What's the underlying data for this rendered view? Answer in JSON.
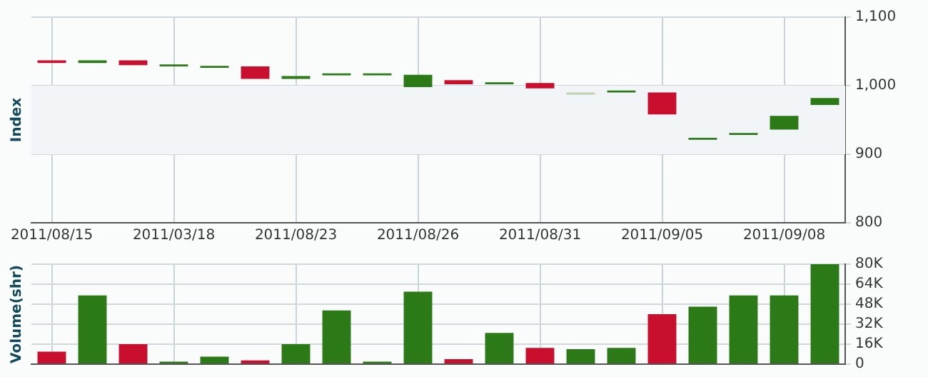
{
  "chart_data": [
    {
      "type": "candlestick",
      "ylabel": "Index",
      "categories": [
        "2011/08/15",
        null,
        null,
        "2011/03/18",
        null,
        null,
        "2011/08/23",
        null,
        null,
        "2011/08/26",
        null,
        null,
        "2011/08/31",
        null,
        null,
        "2011/09/05",
        null,
        null,
        "2011/09/08",
        null
      ],
      "ohlc": [
        [
          1037,
          1037,
          1033,
          1033
        ],
        [
          1033,
          1037,
          1033,
          1037
        ],
        [
          1037,
          1037,
          1030,
          1030
        ],
        [
          1028,
          1031,
          1028,
          1031
        ],
        [
          1026,
          1029,
          1026,
          1029
        ],
        [
          1028,
          1028,
          1010,
          1010
        ],
        [
          1010,
          1014,
          1010,
          1014
        ],
        [
          1015,
          1018,
          1015,
          1018
        ],
        [
          1015,
          1018,
          1015,
          1018
        ],
        [
          998,
          1016,
          998,
          1016
        ],
        [
          1008,
          1008,
          1002,
          1002
        ],
        [
          1002,
          1005,
          1002,
          1005
        ],
        [
          1004,
          1004,
          996,
          996
        ],
        [
          987,
          990,
          987,
          990
        ],
        [
          990,
          993,
          990,
          993
        ],
        [
          990,
          990,
          958,
          958
        ],
        [
          921,
          924,
          921,
          924
        ],
        [
          928,
          931,
          928,
          931
        ],
        [
          936,
          956,
          936,
          956
        ],
        [
          972,
          982,
          972,
          982
        ]
      ],
      "colors": [
        "#c8102e",
        "#2b7a17",
        "#c8102e",
        "#2b7a17",
        "#2b7a17",
        "#c8102e",
        "#2b7a17",
        "#2b7a17",
        "#2b7a17",
        "#2b7a17",
        "#c8102e",
        "#2b7a17",
        "#c8102e",
        "#b9d6b0",
        "#2b7a17",
        "#c8102e",
        "#2b7a17",
        "#2b7a17",
        "#2b7a17",
        "#2b7a17"
      ],
      "ylim": [
        800,
        1100
      ],
      "yticks": [
        800,
        900,
        {
          "value": 1000,
          "label": "1,000"
        },
        {
          "value": 1100,
          "label": "1,100"
        }
      ],
      "grid": true,
      "bands": [
        {
          "axis": "y",
          "from": 900,
          "to": 1000,
          "color": "#f2f5f7"
        }
      ]
    },
    {
      "type": "bar",
      "ylabel": "Volume(shr)",
      "categories": [
        "2011/08/15",
        null,
        null,
        "2011/03/18",
        null,
        null,
        "2011/08/23",
        null,
        null,
        "2011/08/26",
        null,
        null,
        "2011/08/31",
        null,
        null,
        "2011/09/05",
        null,
        null,
        "2011/09/08",
        null
      ],
      "values": [
        10000,
        55000,
        16000,
        2000,
        6000,
        3000,
        16000,
        43000,
        2000,
        58000,
        4000,
        25000,
        13000,
        12000,
        13000,
        40000,
        46000,
        55000,
        55000,
        80000
      ],
      "colors": [
        "#c8102e",
        "#2b7a17",
        "#c8102e",
        "#2b7a17",
        "#2b7a17",
        "#c8102e",
        "#2b7a17",
        "#2b7a17",
        "#2b7a17",
        "#2b7a17",
        "#c8102e",
        "#2b7a17",
        "#c8102e",
        "#2b7a17",
        "#2b7a17",
        "#c8102e",
        "#2b7a17",
        "#2b7a17",
        "#2b7a17",
        "#2b7a17"
      ],
      "ylim": [
        0,
        80000
      ],
      "yticks": [
        0,
        {
          "value": 16000,
          "label": "16K"
        },
        {
          "value": 32000,
          "label": "32K"
        },
        {
          "value": 48000,
          "label": "48K"
        },
        {
          "value": 64000,
          "label": "64K"
        },
        {
          "value": 80000,
          "label": "80K"
        }
      ],
      "grid": true,
      "tick_labels": "y"
    }
  ]
}
